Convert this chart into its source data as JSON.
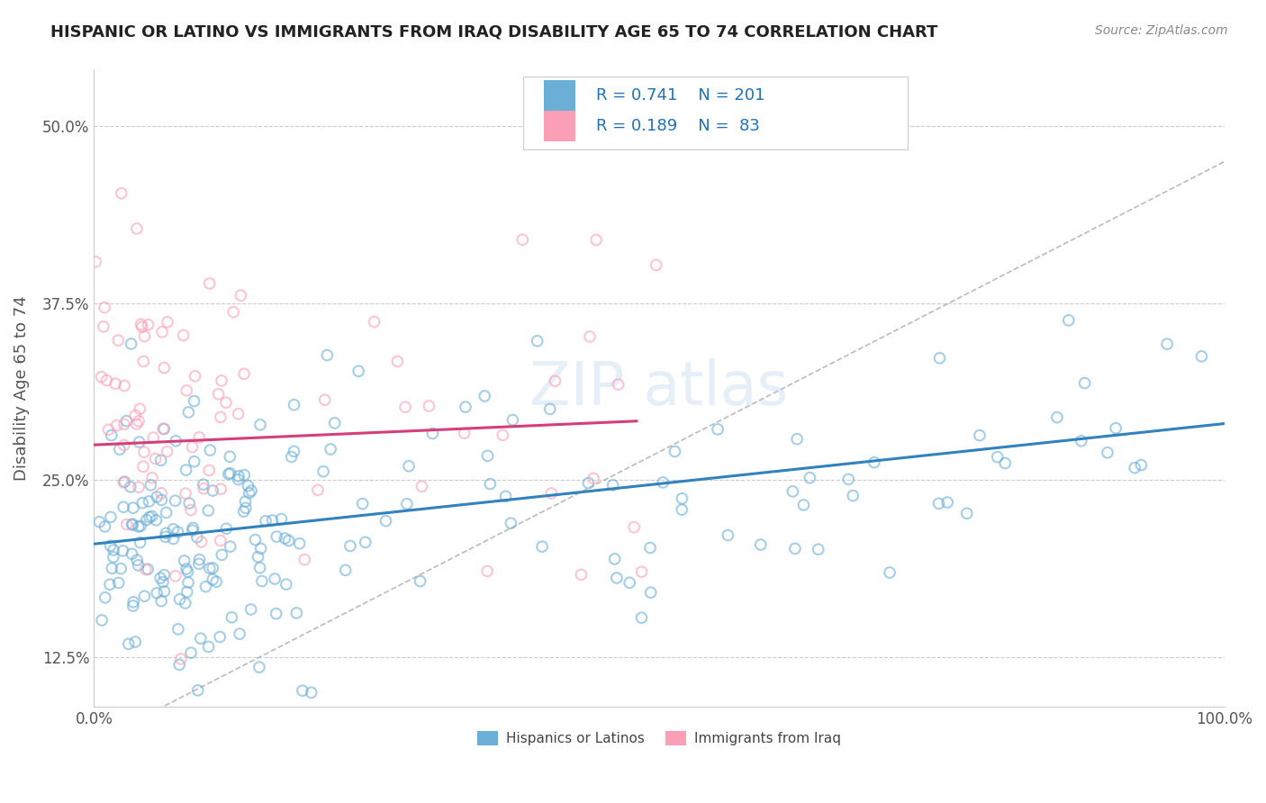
{
  "title": "HISPANIC OR LATINO VS IMMIGRANTS FROM IRAQ DISABILITY AGE 65 TO 74 CORRELATION CHART",
  "source": "Source: ZipAtlas.com",
  "ylabel": "Disability Age 65 to 74",
  "x_tick_labels": [
    "0.0%",
    "100.0%"
  ],
  "y_tick_labels": [
    "12.5%",
    "25.0%",
    "37.5%",
    "50.0%"
  ],
  "y_tick_values": [
    0.125,
    0.25,
    0.375,
    0.5
  ],
  "xlim": [
    0.0,
    1.0
  ],
  "ylim": [
    0.09,
    0.54
  ],
  "legend_label1": "Hispanics or Latinos",
  "legend_label2": "Immigrants from Iraq",
  "blue_color": "#6baed6",
  "pink_color": "#fa9fb5",
  "blue_line_color": "#3182bd",
  "pink_line_color": "#d63e7a",
  "watermark": "ZIPAtlas",
  "blue_scatter_alpha": 0.6,
  "pink_scatter_alpha": 0.6,
  "marker_size": 70,
  "background_color": "#ffffff",
  "grid_color": "#cccccc",
  "title_color": "#222222",
  "axis_label_color": "#555555",
  "legend_text_color": "#2171b5",
  "legend_rn_color": "#2171b5",
  "blue_trend_slope": 0.085,
  "blue_trend_intercept": 0.205,
  "pink_trend_slope": 0.035,
  "pink_trend_intercept": 0.275,
  "ref_line_slope": 0.41,
  "ref_line_intercept": 0.065,
  "R1": 0.741,
  "N1": 201,
  "R2": 0.189,
  "N2": 83
}
